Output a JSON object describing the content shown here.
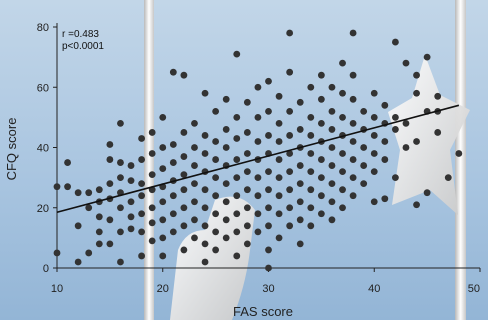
{
  "chart_data": {
    "type": "scatter",
    "title": "",
    "xlabel": "FAS score",
    "ylabel": "CFQ score",
    "xlim": [
      10,
      50
    ],
    "ylim": [
      0,
      80
    ],
    "x_ticks": [
      "10",
      "20",
      "30",
      "40",
      "50"
    ],
    "y_ticks": [
      "0",
      "20",
      "40",
      "60",
      "80"
    ],
    "grid": false,
    "annotations": [
      "r =0.483",
      "p<0.0001"
    ],
    "regression": {
      "x": [
        10,
        48
      ],
      "y": [
        18.5,
        54
      ]
    },
    "marker_color": "#333333",
    "line_color": "#111111",
    "points": [
      [
        10,
        5
      ],
      [
        10,
        27
      ],
      [
        11,
        27
      ],
      [
        11,
        35
      ],
      [
        12,
        2
      ],
      [
        12,
        14
      ],
      [
        12,
        25
      ],
      [
        13,
        5
      ],
      [
        13,
        20
      ],
      [
        13,
        25
      ],
      [
        14,
        8
      ],
      [
        14,
        12
      ],
      [
        14,
        17
      ],
      [
        14,
        22
      ],
      [
        14,
        26
      ],
      [
        15,
        8
      ],
      [
        15,
        16
      ],
      [
        15,
        23
      ],
      [
        15,
        28
      ],
      [
        15,
        36
      ],
      [
        15,
        41
      ],
      [
        16,
        2
      ],
      [
        16,
        12
      ],
      [
        16,
        20
      ],
      [
        16,
        25
      ],
      [
        16,
        30
      ],
      [
        16,
        35
      ],
      [
        16,
        48
      ],
      [
        17,
        13
      ],
      [
        17,
        17
      ],
      [
        17,
        22
      ],
      [
        17,
        29
      ],
      [
        17,
        34
      ],
      [
        18,
        4
      ],
      [
        18,
        12
      ],
      [
        18,
        18
      ],
      [
        18,
        24
      ],
      [
        18,
        28
      ],
      [
        18,
        36
      ],
      [
        18,
        43
      ],
      [
        19,
        9
      ],
      [
        19,
        15
      ],
      [
        19,
        20
      ],
      [
        19,
        26
      ],
      [
        19,
        31
      ],
      [
        19,
        38
      ],
      [
        19,
        45
      ],
      [
        20,
        4
      ],
      [
        20,
        10
      ],
      [
        20,
        16
      ],
      [
        20,
        22
      ],
      [
        20,
        27
      ],
      [
        20,
        33
      ],
      [
        20,
        40
      ],
      [
        20,
        50
      ],
      [
        21,
        12
      ],
      [
        21,
        18
      ],
      [
        21,
        24
      ],
      [
        21,
        29
      ],
      [
        21,
        35
      ],
      [
        21,
        41
      ],
      [
        21,
        65
      ],
      [
        22,
        6
      ],
      [
        22,
        14
      ],
      [
        22,
        20
      ],
      [
        22,
        26
      ],
      [
        22,
        31
      ],
      [
        22,
        37
      ],
      [
        22,
        45
      ],
      [
        22,
        64
      ],
      [
        23,
        10
      ],
      [
        23,
        16
      ],
      [
        23,
        22
      ],
      [
        23,
        28
      ],
      [
        23,
        34
      ],
      [
        23,
        40
      ],
      [
        23,
        48
      ],
      [
        24,
        2
      ],
      [
        24,
        8
      ],
      [
        24,
        14
      ],
      [
        24,
        20
      ],
      [
        24,
        26
      ],
      [
        24,
        32
      ],
      [
        24,
        38
      ],
      [
        24,
        44
      ],
      [
        24,
        58
      ],
      [
        25,
        6
      ],
      [
        25,
        12
      ],
      [
        25,
        18
      ],
      [
        25,
        24
      ],
      [
        25,
        30
      ],
      [
        25,
        36
      ],
      [
        25,
        42
      ],
      [
        25,
        52
      ],
      [
        26,
        10
      ],
      [
        26,
        16
      ],
      [
        26,
        22
      ],
      [
        26,
        28
      ],
      [
        26,
        34
      ],
      [
        26,
        40
      ],
      [
        26,
        46
      ],
      [
        26,
        56
      ],
      [
        27,
        4
      ],
      [
        27,
        12
      ],
      [
        27,
        18
      ],
      [
        27,
        24
      ],
      [
        27,
        30
      ],
      [
        27,
        36
      ],
      [
        27,
        43
      ],
      [
        27,
        50
      ],
      [
        27,
        71
      ],
      [
        28,
        8
      ],
      [
        28,
        14
      ],
      [
        28,
        20
      ],
      [
        28,
        26
      ],
      [
        28,
        32
      ],
      [
        28,
        38
      ],
      [
        28,
        45
      ],
      [
        28,
        55
      ],
      [
        29,
        12
      ],
      [
        29,
        18
      ],
      [
        29,
        24
      ],
      [
        29,
        30
      ],
      [
        29,
        36
      ],
      [
        29,
        42
      ],
      [
        29,
        50
      ],
      [
        29,
        60
      ],
      [
        30,
        0
      ],
      [
        30,
        6
      ],
      [
        30,
        14
      ],
      [
        30,
        20
      ],
      [
        30,
        26
      ],
      [
        30,
        32
      ],
      [
        30,
        38
      ],
      [
        30,
        44
      ],
      [
        30,
        52
      ],
      [
        30,
        62
      ],
      [
        31,
        10
      ],
      [
        31,
        18
      ],
      [
        31,
        24
      ],
      [
        31,
        30
      ],
      [
        31,
        36
      ],
      [
        31,
        42
      ],
      [
        31,
        48
      ],
      [
        31,
        57
      ],
      [
        32,
        14
      ],
      [
        32,
        20
      ],
      [
        32,
        26
      ],
      [
        32,
        32
      ],
      [
        32,
        38
      ],
      [
        32,
        44
      ],
      [
        32,
        52
      ],
      [
        32,
        65
      ],
      [
        32,
        78
      ],
      [
        33,
        8
      ],
      [
        33,
        16
      ],
      [
        33,
        22
      ],
      [
        33,
        28
      ],
      [
        33,
        34
      ],
      [
        33,
        40
      ],
      [
        33,
        46
      ],
      [
        33,
        55
      ],
      [
        34,
        14
      ],
      [
        34,
        20
      ],
      [
        34,
        26
      ],
      [
        34,
        32
      ],
      [
        34,
        38
      ],
      [
        34,
        44
      ],
      [
        34,
        50
      ],
      [
        34,
        60
      ],
      [
        35,
        18
      ],
      [
        35,
        24
      ],
      [
        35,
        30
      ],
      [
        35,
        36
      ],
      [
        35,
        42
      ],
      [
        35,
        48
      ],
      [
        35,
        56
      ],
      [
        35,
        64
      ],
      [
        36,
        16
      ],
      [
        36,
        22
      ],
      [
        36,
        28
      ],
      [
        36,
        34
      ],
      [
        36,
        40
      ],
      [
        36,
        46
      ],
      [
        36,
        52
      ],
      [
        36,
        60
      ],
      [
        37,
        20
      ],
      [
        37,
        26
      ],
      [
        37,
        32
      ],
      [
        37,
        38
      ],
      [
        37,
        44
      ],
      [
        37,
        50
      ],
      [
        37,
        58
      ],
      [
        37,
        68
      ],
      [
        38,
        24
      ],
      [
        38,
        30
      ],
      [
        38,
        36
      ],
      [
        38,
        42
      ],
      [
        38,
        48
      ],
      [
        38,
        56
      ],
      [
        38,
        64
      ],
      [
        38,
        78
      ],
      [
        39,
        28
      ],
      [
        39,
        34
      ],
      [
        39,
        40
      ],
      [
        39,
        46
      ],
      [
        39,
        52
      ],
      [
        40,
        22
      ],
      [
        40,
        32
      ],
      [
        40,
        38
      ],
      [
        40,
        44
      ],
      [
        40,
        50
      ],
      [
        40,
        58
      ],
      [
        41,
        23
      ],
      [
        41,
        36
      ],
      [
        41,
        42
      ],
      [
        41,
        48
      ],
      [
        41,
        54
      ],
      [
        42,
        30
      ],
      [
        42,
        46
      ],
      [
        42,
        50
      ],
      [
        42,
        75
      ],
      [
        43,
        40
      ],
      [
        43,
        48
      ],
      [
        43,
        68
      ],
      [
        44,
        21
      ],
      [
        44,
        42
      ],
      [
        44,
        58
      ],
      [
        44,
        64
      ],
      [
        45,
        25
      ],
      [
        45,
        52
      ],
      [
        45,
        70
      ],
      [
        46,
        45
      ],
      [
        46,
        52
      ],
      [
        46,
        57
      ],
      [
        47,
        30
      ],
      [
        48,
        38
      ]
    ]
  }
}
